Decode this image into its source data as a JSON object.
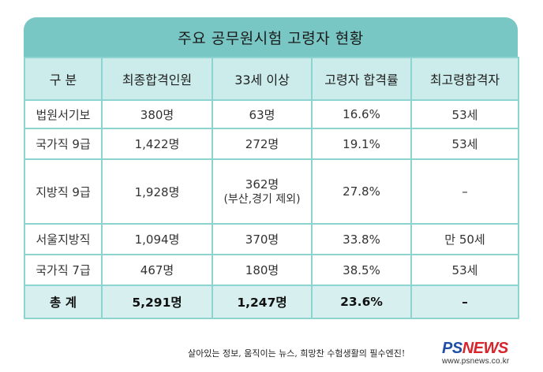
{
  "title": "주요 공무원시험 고령자 현황",
  "table": {
    "headers": [
      "구  분",
      "최종합격인원",
      "33세 이상",
      "고령자 합격률",
      "최고령합격자"
    ],
    "rows": [
      {
        "category": "법원서기보",
        "final": "380명",
        "over33": "63명",
        "over33_note": "",
        "rate": "16.6%",
        "oldest": "53세"
      },
      {
        "category": "국가직 9급",
        "final": "1,422명",
        "over33": "272명",
        "over33_note": "",
        "rate": "19.1%",
        "oldest": "53세"
      },
      {
        "category": "지방직 9급",
        "final": "1,928명",
        "over33": "362명",
        "over33_note": "(부산,경기 제외)",
        "rate": "27.8%",
        "oldest": "–"
      },
      {
        "category": "서울지방직",
        "final": "1,094명",
        "over33": "370명",
        "over33_note": "",
        "rate": "33.8%",
        "oldest": "만 50세"
      },
      {
        "category": "국가직 7급",
        "final": "467명",
        "over33": "180명",
        "over33_note": "",
        "rate": "38.5%",
        "oldest": "53세"
      }
    ],
    "total": {
      "category": "총  계",
      "final": "5,291명",
      "over33": "1,247명",
      "rate": "23.6%",
      "oldest": "–"
    }
  },
  "footer": {
    "slogan": "살아있는 정보, 움직이는 뉴스, 희망찬 수험생활의 필수엔진!",
    "logo_ps": "PS",
    "logo_news": "NEWS",
    "url": "www.psnews.co.kr"
  },
  "colors": {
    "title_bar": "#78c7c4",
    "header_bg": "#cceceb",
    "total_bg": "#d7f0ef",
    "border": "#8dd3cf",
    "logo_blue": "#1f4ea8",
    "logo_red": "#d8242b"
  }
}
